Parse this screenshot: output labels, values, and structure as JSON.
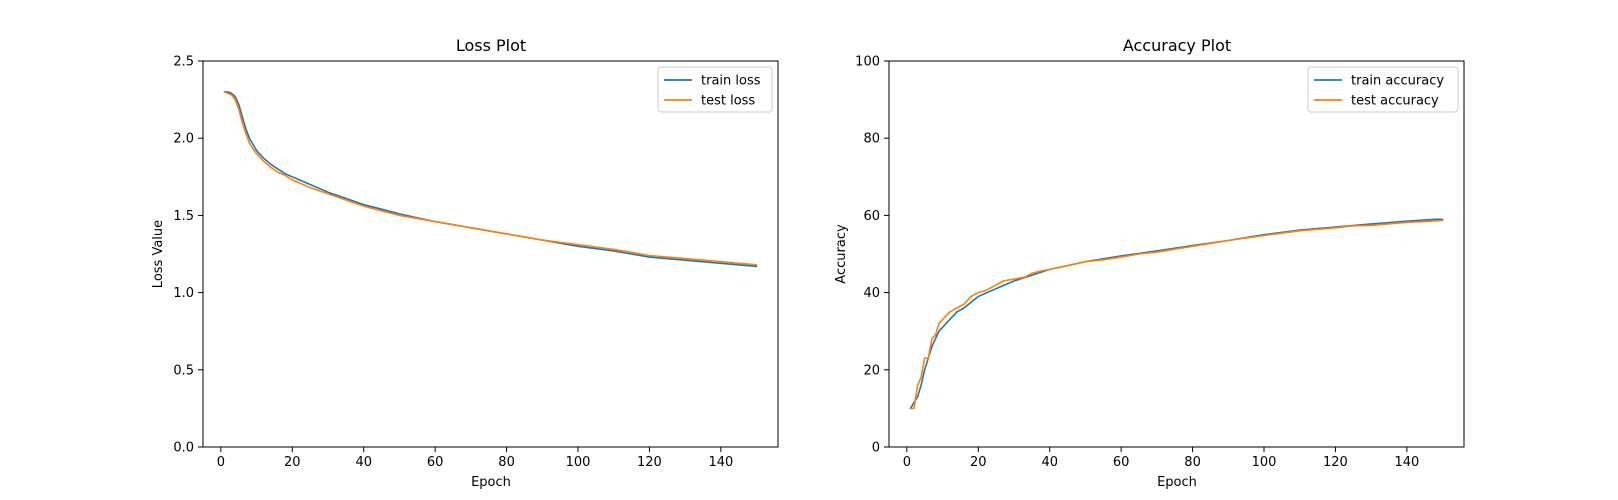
{
  "chart_data": [
    {
      "type": "line",
      "title": "Loss Plot",
      "xlabel": "Epoch",
      "ylabel": "Loss Value",
      "xlim": [
        -5,
        156
      ],
      "ylim": [
        0,
        2.5
      ],
      "xticks": [
        0,
        20,
        40,
        60,
        80,
        100,
        120,
        140
      ],
      "yticks": [
        0.0,
        0.5,
        1.0,
        1.5,
        2.0,
        2.5
      ],
      "ytick_labels": [
        "0.0",
        "0.5",
        "1.0",
        "1.5",
        "2.0",
        "2.5"
      ],
      "grid": false,
      "legend": "top-right",
      "series": [
        {
          "name": "train loss",
          "color": "#1f77b4",
          "x": [
            1,
            2,
            3,
            4,
            5,
            6,
            7,
            8,
            9,
            10,
            12,
            14,
            16,
            18,
            20,
            25,
            30,
            35,
            40,
            45,
            50,
            60,
            70,
            80,
            90,
            100,
            110,
            120,
            130,
            140,
            150
          ],
          "y": [
            2.3,
            2.3,
            2.29,
            2.27,
            2.22,
            2.14,
            2.06,
            2.0,
            1.96,
            1.92,
            1.87,
            1.83,
            1.8,
            1.77,
            1.75,
            1.7,
            1.65,
            1.61,
            1.57,
            1.54,
            1.51,
            1.46,
            1.42,
            1.38,
            1.34,
            1.3,
            1.27,
            1.23,
            1.21,
            1.19,
            1.17
          ]
        },
        {
          "name": "test loss",
          "color": "#ff7f0e",
          "x": [
            1,
            2,
            3,
            4,
            5,
            6,
            7,
            8,
            9,
            10,
            12,
            14,
            16,
            18,
            20,
            25,
            30,
            35,
            40,
            45,
            50,
            60,
            70,
            80,
            90,
            100,
            110,
            120,
            130,
            140,
            150
          ],
          "y": [
            2.3,
            2.29,
            2.28,
            2.25,
            2.19,
            2.1,
            2.03,
            1.97,
            1.93,
            1.9,
            1.85,
            1.81,
            1.78,
            1.76,
            1.73,
            1.68,
            1.64,
            1.6,
            1.56,
            1.53,
            1.5,
            1.46,
            1.42,
            1.38,
            1.34,
            1.31,
            1.28,
            1.24,
            1.22,
            1.2,
            1.18
          ]
        }
      ]
    },
    {
      "type": "line",
      "title": "Accuracy Plot",
      "xlabel": "Epoch",
      "ylabel": "Accuracy",
      "xlim": [
        -5,
        156
      ],
      "ylim": [
        0,
        100
      ],
      "xticks": [
        0,
        20,
        40,
        60,
        80,
        100,
        120,
        140
      ],
      "yticks": [
        0,
        20,
        40,
        60,
        80,
        100
      ],
      "ytick_labels": [
        "0",
        "20",
        "40",
        "60",
        "80",
        "100"
      ],
      "grid": false,
      "legend": "top-right",
      "series": [
        {
          "name": "train accuracy",
          "color": "#1f77b4",
          "x": [
            1,
            2,
            3,
            4,
            5,
            6,
            7,
            8,
            9,
            10,
            12,
            14,
            16,
            18,
            20,
            25,
            30,
            35,
            40,
            45,
            50,
            60,
            70,
            80,
            90,
            100,
            110,
            120,
            130,
            140,
            148,
            150
          ],
          "y": [
            10,
            11.5,
            13,
            16,
            20,
            23,
            26,
            28,
            30,
            31,
            33,
            35,
            36,
            37.5,
            39,
            41,
            43,
            44.5,
            46,
            47,
            48,
            49.5,
            50.8,
            52.2,
            53.5,
            55,
            56.2,
            57,
            57.8,
            58.5,
            59,
            59
          ]
        },
        {
          "name": "test accuracy",
          "color": "#ff7f0e",
          "x": [
            1,
            2,
            3,
            4,
            5,
            6,
            7,
            8,
            9,
            10,
            12,
            14,
            16,
            18,
            20,
            22,
            25,
            27,
            30,
            33,
            35,
            37,
            40,
            45,
            50,
            55,
            60,
            65,
            70,
            80,
            90,
            100,
            110,
            120,
            125,
            130,
            140,
            145,
            150
          ],
          "y": [
            10,
            10,
            16,
            18,
            23,
            23,
            28,
            29,
            32,
            33,
            35,
            36,
            37,
            39,
            40,
            40.5,
            42,
            43,
            43.5,
            44,
            45,
            45.5,
            46,
            47,
            48,
            48.5,
            49.2,
            50,
            50.5,
            52,
            53.5,
            54.8,
            56,
            56.8,
            57.3,
            57.4,
            58.2,
            58.4,
            58.7
          ]
        }
      ]
    }
  ]
}
